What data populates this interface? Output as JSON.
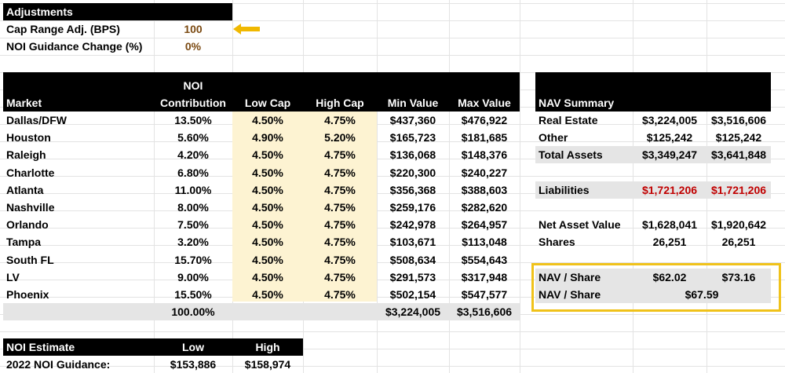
{
  "adjustments": {
    "header": "Adjustments",
    "rows": [
      {
        "label": "Cap Range Adj. (BPS)",
        "value": "100"
      },
      {
        "label": "NOI Guidance Change (%)",
        "value": "0%"
      }
    ],
    "pointer_icon": "left-arrow-icon"
  },
  "market_table": {
    "headers": {
      "market": "Market",
      "noi_top": "NOI",
      "noi_bottom": "Contribution",
      "low_cap": "Low Cap",
      "high_cap": "High Cap",
      "min_value": "Min Value",
      "max_value": "Max Value"
    },
    "rows": [
      {
        "market": "Dallas/DFW",
        "noi": "13.50%",
        "low": "4.50%",
        "high": "4.75%",
        "min": "$437,360",
        "max": "$476,922"
      },
      {
        "market": "Houston",
        "noi": "5.60%",
        "low": "4.90%",
        "high": "5.20%",
        "min": "$165,723",
        "max": "$181,685"
      },
      {
        "market": "Raleigh",
        "noi": "4.20%",
        "low": "4.50%",
        "high": "4.75%",
        "min": "$136,068",
        "max": "$148,376"
      },
      {
        "market": "Charlotte",
        "noi": "6.80%",
        "low": "4.50%",
        "high": "4.75%",
        "min": "$220,300",
        "max": "$240,227"
      },
      {
        "market": "Atlanta",
        "noi": "11.00%",
        "low": "4.50%",
        "high": "4.75%",
        "min": "$356,368",
        "max": "$388,603"
      },
      {
        "market": "Nashville",
        "noi": "8.00%",
        "low": "4.50%",
        "high": "4.75%",
        "min": "$259,176",
        "max": "$282,620"
      },
      {
        "market": "Orlando",
        "noi": "7.50%",
        "low": "4.50%",
        "high": "4.75%",
        "min": "$242,978",
        "max": "$264,957"
      },
      {
        "market": "Tampa",
        "noi": "3.20%",
        "low": "4.50%",
        "high": "4.75%",
        "min": "$103,671",
        "max": "$113,048"
      },
      {
        "market": "South FL",
        "noi": "15.70%",
        "low": "4.50%",
        "high": "4.75%",
        "min": "$508,634",
        "max": "$554,643"
      },
      {
        "market": "LV",
        "noi": "9.00%",
        "low": "4.50%",
        "high": "4.75%",
        "min": "$291,573",
        "max": "$317,948"
      },
      {
        "market": "Phoenix",
        "noi": "15.50%",
        "low": "4.50%",
        "high": "4.75%",
        "min": "$502,154",
        "max": "$547,577"
      }
    ],
    "totals": {
      "noi": "100.00%",
      "min": "$3,224,005",
      "max": "$3,516,606"
    }
  },
  "nav_summary": {
    "header": "NAV Summary",
    "real_estate": {
      "label": "Real Estate",
      "low": "$3,224,005",
      "high": "$3,516,606"
    },
    "other": {
      "label": "Other",
      "low": "$125,242",
      "high": "$125,242"
    },
    "total_assets": {
      "label": "Total Assets",
      "low": "$3,349,247",
      "high": "$3,641,848"
    },
    "liabilities": {
      "label": "Liabilities",
      "low": "$1,721,206",
      "high": "$1,721,206"
    },
    "net_asset_value": {
      "label": "Net Asset Value",
      "low": "$1,628,041",
      "high": "$1,920,642"
    },
    "shares": {
      "label": "Shares",
      "low": "26,251",
      "high": "26,251"
    },
    "nav_share_range": {
      "label": "NAV / Share",
      "low": "$62.02",
      "high": "$73.16"
    },
    "nav_share_mid": {
      "label": "NAV / Share",
      "value": "$67.59"
    }
  },
  "noi_estimate": {
    "headers": {
      "label": "NOI Estimate",
      "low": "Low",
      "high": "High"
    },
    "row": {
      "label": "2022 NOI Guidance:",
      "low": "$153,886",
      "high": "$158,974"
    }
  },
  "colors": {
    "header_bg": "#000000",
    "cap_column_bg": "#fdf3d2",
    "total_row_bg": "#e5e5e5",
    "liability_red": "#c00000",
    "input_brown": "#7b4a12",
    "highlight_yellow": "#f0c21a"
  }
}
